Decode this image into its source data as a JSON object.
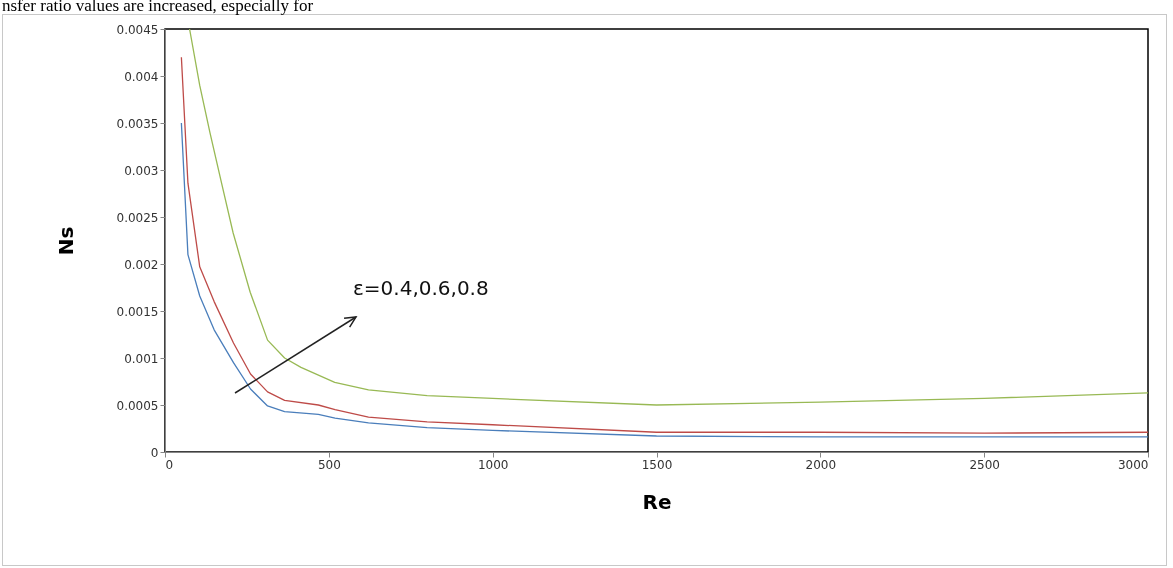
{
  "chart_data": {
    "type": "line",
    "xlabel": "Re",
    "ylabel": "Ns",
    "annotations": [
      "nsfer ratio values are increased, especially for",
      "ε=0.4,0.6,0.8"
    ],
    "xlim": [
      0,
      3000
    ],
    "xticks": [
      0,
      500,
      1000,
      1500,
      2000,
      2500,
      3000
    ],
    "ylim": [
      0,
      0.0045
    ],
    "yticks": [
      0,
      0.0005,
      0.001,
      0.0015,
      0.002,
      0.0025,
      0.003,
      0.0035,
      0.004,
      0.0045
    ],
    "grid": false,
    "marker": "none",
    "line_style": "solid",
    "series": [
      {
        "color": "#4a7ebb",
        "x": [
          50,
          70,
          106,
          150,
          209,
          261,
          313,
          365,
          468,
          519,
          621,
          800,
          1000,
          1500,
          2000,
          2500,
          3000
        ],
        "values": [
          0.0035,
          0.0021,
          0.00166,
          0.0013,
          0.00095,
          0.00067,
          0.00049,
          0.00043,
          0.0004,
          0.00036,
          0.00031,
          0.00026,
          0.00023,
          0.00017,
          0.00016,
          0.00016,
          0.00016
        ]
      },
      {
        "color": "#be4b48",
        "x": [
          50,
          70,
          106,
          150,
          209,
          261,
          313,
          365,
          468,
          519,
          621,
          800,
          1000,
          1500,
          2000,
          2500,
          3000
        ],
        "values": [
          0.0042,
          0.00286,
          0.00197,
          0.0016,
          0.00116,
          0.00083,
          0.00064,
          0.00055,
          0.0005,
          0.00045,
          0.00037,
          0.00032,
          0.00029,
          0.00021,
          0.00021,
          0.0002,
          0.00021
        ]
      },
      {
        "color": "#98b954",
        "x": [
          75,
          106,
          137,
          170,
          208,
          260,
          313,
          365,
          415,
          518,
          621,
          800,
          1000,
          1500,
          2000,
          2500,
          3000
        ],
        "values": [
          0.0045,
          0.0039,
          0.0034,
          0.0029,
          0.00233,
          0.0017,
          0.00119,
          0.001,
          0.0009,
          0.00074,
          0.00066,
          0.0006,
          0.00057,
          0.0005,
          0.00053,
          0.00057,
          0.00063
        ]
      }
    ]
  }
}
